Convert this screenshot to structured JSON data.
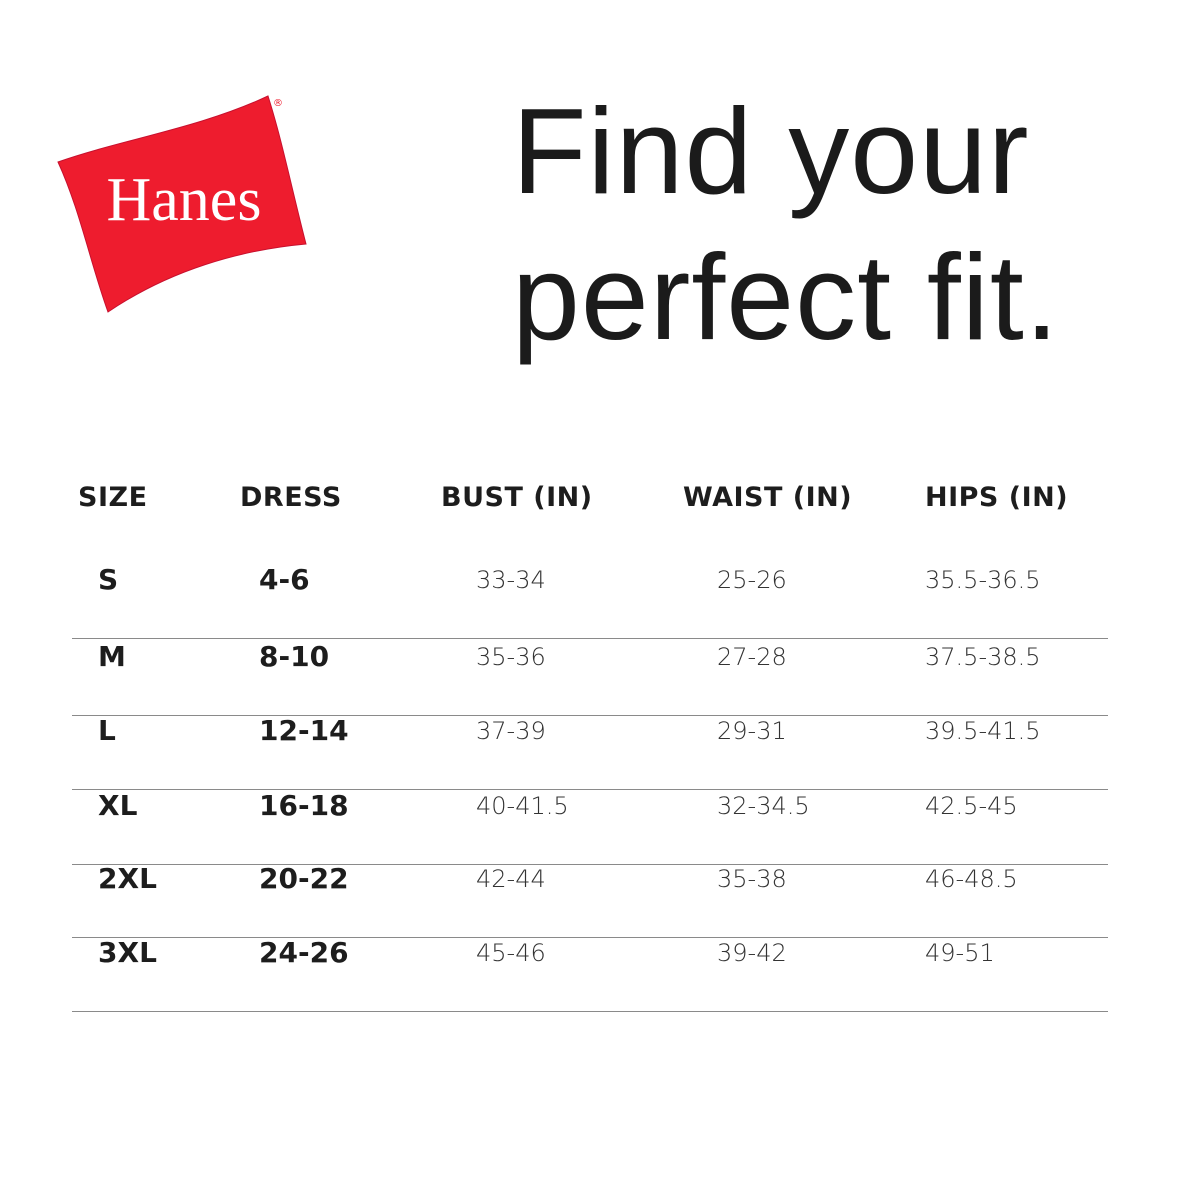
{
  "brand": {
    "name": "Hanes",
    "registered": "®",
    "color": "#ee1c2e"
  },
  "headline": {
    "line1": "Find your",
    "line2": "perfect fit."
  },
  "table": {
    "headers": [
      "SIZE",
      "DRESS",
      "BUST (IN)",
      "WAIST (IN)",
      "HIPS (IN)"
    ],
    "rows": [
      [
        "S",
        "4-6",
        "33-34",
        "25-26",
        "35.5-36.5"
      ],
      [
        "M",
        "8-10",
        "35-36",
        "27-28",
        "37.5-38.5"
      ],
      [
        "L",
        "12-14",
        "37-39",
        "29-31",
        "39.5-41.5"
      ],
      [
        "XL",
        "16-18",
        "40-41.5",
        "32-34.5",
        "42.5-45"
      ],
      [
        "2XL",
        "20-22",
        "42-44",
        "35-38",
        "46-48.5"
      ],
      [
        "3XL",
        "24-26",
        "45-46",
        "39-42",
        "49-51"
      ]
    ]
  }
}
